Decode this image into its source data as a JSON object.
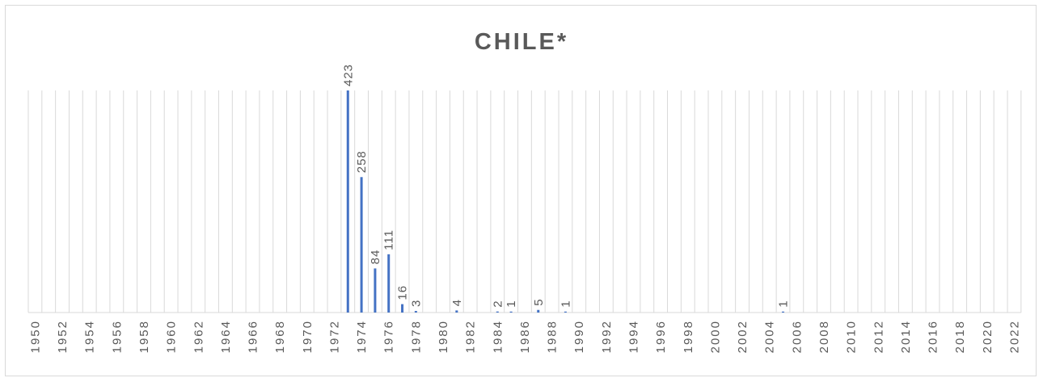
{
  "chart_data": {
    "type": "bar",
    "title": "CHILE*",
    "xlabel": "",
    "ylabel": "",
    "x_range": [
      1950,
      2022
    ],
    "tick_labels": [
      "1950",
      "1952",
      "1954",
      "1956",
      "1958",
      "1960",
      "1962",
      "1964",
      "1966",
      "1968",
      "1970",
      "1972",
      "1974",
      "1976",
      "1978",
      "1980",
      "1982",
      "1984",
      "1986",
      "1988",
      "1990",
      "1992",
      "1994",
      "1996",
      "1998",
      "2000",
      "2002",
      "2004",
      "2006",
      "2008",
      "2010",
      "2012",
      "2014",
      "2016",
      "2018",
      "2020",
      "2022"
    ],
    "points": [
      {
        "x": 1973,
        "y": 423
      },
      {
        "x": 1974,
        "y": 258
      },
      {
        "x": 1975,
        "y": 84
      },
      {
        "x": 1976,
        "y": 111
      },
      {
        "x": 1977,
        "y": 16
      },
      {
        "x": 1978,
        "y": 3
      },
      {
        "x": 1981,
        "y": 4
      },
      {
        "x": 1984,
        "y": 2
      },
      {
        "x": 1985,
        "y": 1
      },
      {
        "x": 1987,
        "y": 5
      },
      {
        "x": 1989,
        "y": 1
      },
      {
        "x": 2005,
        "y": 1
      }
    ],
    "ylim": [
      0,
      423
    ],
    "grid": "vertical",
    "bar_color": "#4472c4"
  }
}
